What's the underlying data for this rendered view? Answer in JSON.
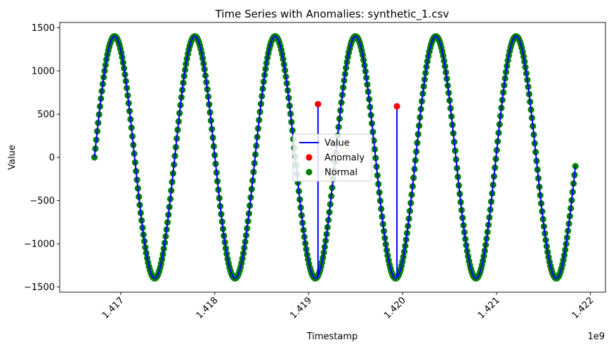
{
  "chart_data": {
    "type": "line",
    "title": "Time Series with Anomalies: synthetic_1.csv",
    "xlabel": "Timestamp",
    "ylabel": "Value",
    "x_offset_label": "1e9",
    "xlim": [
      1.41635,
      1.42216
    ],
    "ylim": [
      -1560,
      1560
    ],
    "x_ticks": [
      1.417,
      1.418,
      1.419,
      1.42,
      1.421,
      1.422
    ],
    "x_tick_labels": [
      "1.417",
      "1.418",
      "1.419",
      "1.420",
      "1.421",
      "1.422"
    ],
    "y_ticks": [
      -1500,
      -1000,
      -500,
      0,
      500,
      1000,
      1500
    ],
    "y_tick_labels": [
      "−1500",
      "−1000",
      "−500",
      "0",
      "500",
      "1000",
      "1500"
    ],
    "grid": false,
    "legend": {
      "placement": "center",
      "entries": [
        "Value",
        "Anomaly",
        "Normal"
      ]
    },
    "series": [
      {
        "name": "Value",
        "kind": "line",
        "color": "#0000ff",
        "x_start": 1.41672,
        "x_end": 1.42184,
        "amplitude": 1400,
        "period": 0.000855,
        "phase_at_start": 0,
        "samples": 1200,
        "spikes": [
          {
            "x": 1.4191,
            "low": -1380,
            "high": 615
          },
          {
            "x": 1.41994,
            "low": -1390,
            "high": 590
          }
        ]
      },
      {
        "name": "Anomaly",
        "kind": "scatter",
        "color": "#ff0000",
        "points": [
          {
            "x": 1.4191,
            "y": 615
          },
          {
            "x": 1.41994,
            "y": 590
          }
        ]
      },
      {
        "name": "Normal",
        "kind": "scatter",
        "color": "#008000",
        "marker_samples": 520
      }
    ]
  }
}
